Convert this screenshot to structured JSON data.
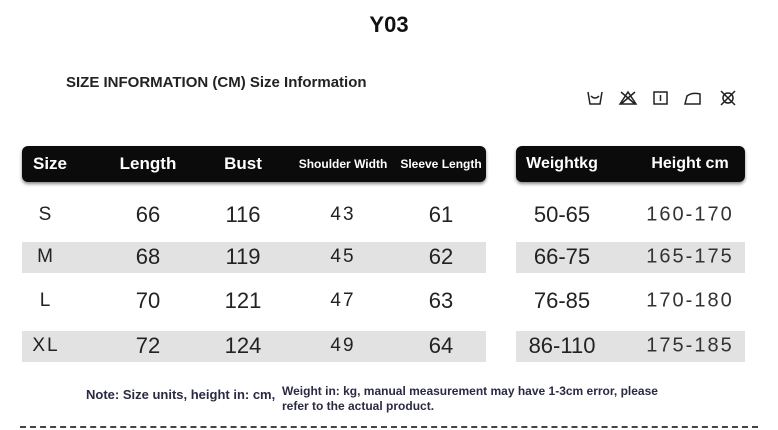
{
  "header": {
    "title": "Y03",
    "subtitle": "SIZE INFORMATION (CM) Size Information"
  },
  "size_table": {
    "headers": [
      "Size",
      "Length",
      "Bust",
      "Shoulder Width",
      "Sleeve Length"
    ],
    "rows": [
      [
        "S",
        "66",
        "116",
        "43",
        "61"
      ],
      [
        "M",
        "68",
        "119",
        "45",
        "62"
      ],
      [
        "L",
        "70",
        "121",
        "47",
        "63"
      ],
      [
        "XL",
        "72",
        "124",
        "49",
        "64"
      ]
    ]
  },
  "fit_table": {
    "headers": [
      "Weightkg",
      "Height cm"
    ],
    "rows": [
      [
        "50-65",
        "160-170"
      ],
      [
        "66-75",
        "165-175"
      ],
      [
        "76-85",
        "170-180"
      ],
      [
        "86-110",
        "175-185"
      ]
    ]
  },
  "notes": {
    "left": "Note: Size units, height in: cm,",
    "right": "Weight in: kg, manual measurement may have 1-3cm error, please refer to the actual product."
  }
}
